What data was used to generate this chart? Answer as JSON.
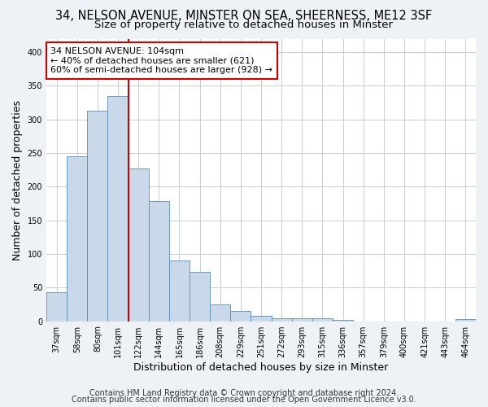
{
  "title_line1": "34, NELSON AVENUE, MINSTER ON SEA, SHEERNESS, ME12 3SF",
  "title_line2": "Size of property relative to detached houses in Minster",
  "xlabel": "Distribution of detached houses by size in Minster",
  "ylabel": "Number of detached properties",
  "footer_line1": "Contains HM Land Registry data © Crown copyright and database right 2024.",
  "footer_line2": "Contains public sector information licensed under the Open Government Licence v3.0.",
  "categories": [
    "37sqm",
    "58sqm",
    "80sqm",
    "101sqm",
    "122sqm",
    "144sqm",
    "165sqm",
    "186sqm",
    "208sqm",
    "229sqm",
    "251sqm",
    "272sqm",
    "293sqm",
    "315sqm",
    "336sqm",
    "357sqm",
    "379sqm",
    "400sqm",
    "421sqm",
    "443sqm",
    "464sqm"
  ],
  "values": [
    43,
    245,
    313,
    335,
    227,
    179,
    90,
    73,
    25,
    15,
    8,
    4,
    4,
    4,
    2,
    0,
    0,
    0,
    0,
    0,
    3
  ],
  "bar_color": "#c9d9ea",
  "bar_edge_color": "#5a8db5",
  "vline_x_index": 3,
  "vline_color": "#cc0000",
  "annotation_line1": "34 NELSON AVENUE: 104sqm",
  "annotation_line2": "← 40% of detached houses are smaller (621)",
  "annotation_line3": "60% of semi-detached houses are larger (928) →",
  "annotation_box_color": "white",
  "annotation_box_edge_color": "#cc0000",
  "ylim": [
    0,
    420
  ],
  "yticks": [
    0,
    50,
    100,
    150,
    200,
    250,
    300,
    350,
    400
  ],
  "bg_color": "#eef2f7",
  "plot_bg_color": "white",
  "grid_color": "#c8cdd4",
  "title_fontsize": 10.5,
  "subtitle_fontsize": 9.5,
  "tick_fontsize": 7,
  "label_fontsize": 9,
  "footer_fontsize": 7,
  "annot_fontsize": 8
}
